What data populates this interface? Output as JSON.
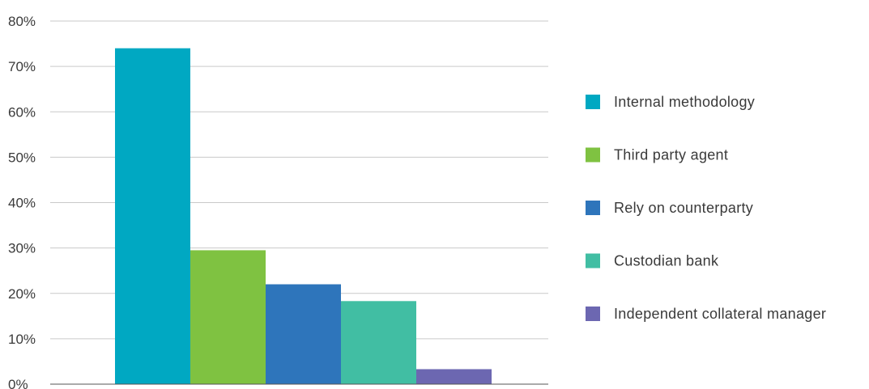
{
  "chart_data": {
    "type": "bar",
    "title": "",
    "xlabel": "",
    "ylabel": "",
    "ylim": [
      0,
      80
    ],
    "y_ticks": [
      "0%",
      "10%",
      "20%",
      "30%",
      "40%",
      "50%",
      "60%",
      "70%",
      "80%"
    ],
    "y_unit": "%",
    "grid": true,
    "legend_position": "right",
    "series": [
      {
        "name": "Internal methodology",
        "value": 74,
        "color": "#00a8c2"
      },
      {
        "name": "Third party agent",
        "value": 29.5,
        "color": "#7fc241"
      },
      {
        "name": "Rely on counterparty",
        "value": 22,
        "color": "#2e75bb"
      },
      {
        "name": "Custodian bank",
        "value": 18.3,
        "color": "#41bea3"
      },
      {
        "name": "Independent collateral manager",
        "value": 3.3,
        "color": "#6c67b1"
      }
    ]
  }
}
